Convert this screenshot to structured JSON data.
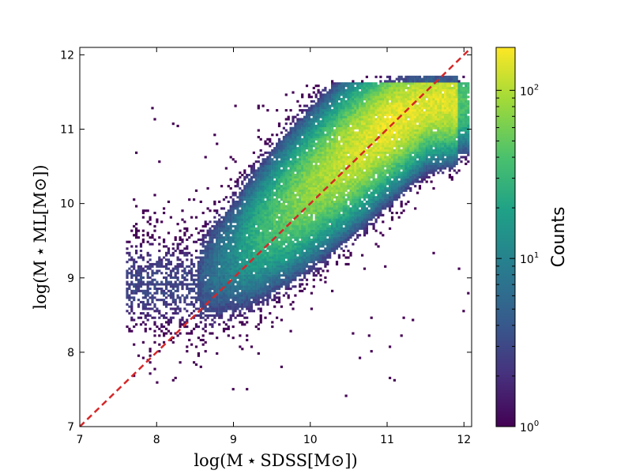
{
  "chart_data": {
    "type": "heatmap",
    "title": "",
    "xlabel": "log(M ⋆ SDSS[M⊙])",
    "ylabel": "log(M ⋆ ML[M⊙])",
    "xlim": [
      7,
      12.1
    ],
    "ylim": [
      7,
      12.1
    ],
    "x_ticks": [
      "7",
      "8",
      "9",
      "10",
      "11",
      "12"
    ],
    "y_ticks": [
      "7",
      "8",
      "9",
      "10",
      "11",
      "12"
    ],
    "x_tick_values": [
      7,
      8,
      9,
      10,
      11,
      12
    ],
    "y_tick_values": [
      7,
      8,
      9,
      10,
      11,
      12
    ],
    "grid": false,
    "colormap": "viridis",
    "colorbar": {
      "label": "Counts",
      "scale": "log",
      "range": [
        1,
        180
      ],
      "ticks": [
        {
          "base": "10",
          "exp": "0",
          "value": 1
        },
        {
          "base": "10",
          "exp": "1",
          "value": 10
        },
        {
          "base": "10",
          "exp": "2",
          "value": 100
        }
      ]
    },
    "reference_line": {
      "type": "one-to-one",
      "x": [
        7,
        12.1
      ],
      "y": [
        7,
        12.1
      ],
      "color": "#d62728",
      "style": "dashed"
    },
    "density_ridge": {
      "x": [
        8.5,
        9.0,
        9.5,
        10.0,
        10.5,
        11.0,
        11.5
      ],
      "y": [
        8.9,
        9.3,
        9.75,
        10.2,
        10.65,
        11.05,
        11.35
      ],
      "peak_counts": [
        3,
        12,
        40,
        80,
        120,
        160,
        140
      ]
    }
  }
}
